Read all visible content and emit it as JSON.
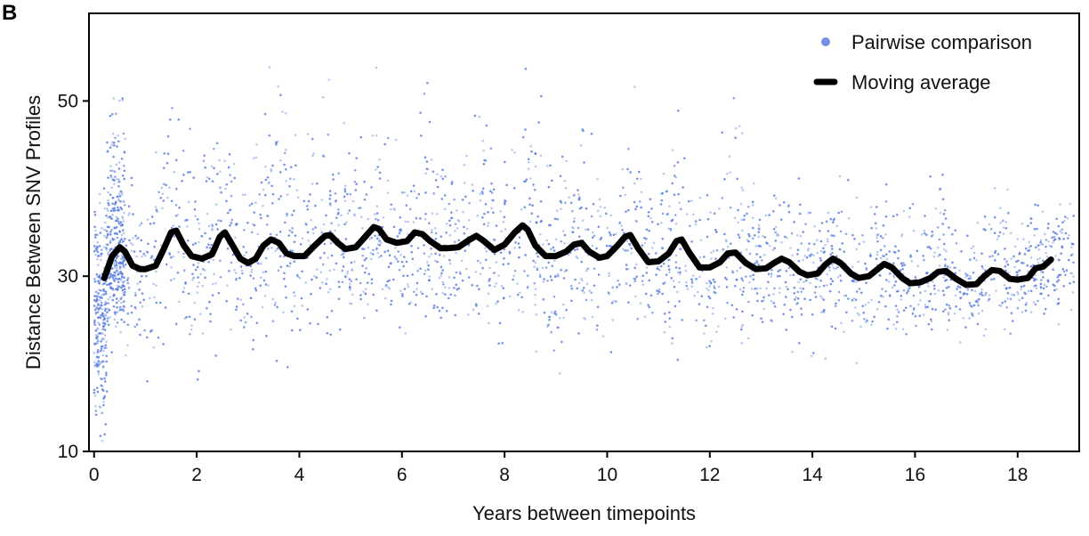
{
  "panel_label": "B",
  "chart_data": {
    "type": "scatter",
    "title": "",
    "xlabel": "Years between timepoints",
    "ylabel": "Distance Between SNV Profiles",
    "xlim": [
      -0.1,
      19.2
    ],
    "ylim": [
      10,
      60
    ],
    "xticks": [
      0,
      2,
      4,
      6,
      8,
      10,
      12,
      14,
      16,
      18
    ],
    "yticks": [
      10,
      30,
      50
    ],
    "grid": false,
    "legend_position": "top-right",
    "colors": {
      "scatter": "#5b7fe3",
      "moving_average": "#000000"
    },
    "series": [
      {
        "name": "Pairwise comparison",
        "kind": "scatter",
        "description_of_distribution": "dense point cloud (tens of thousands of points); within each year cycle the spread is narrowest near integer years (local minima as low as ~16 around years 1–4, ~19–24 later) and widest around half-years (upper tail reaching ~50–58 early, ~40–45 after year 14)",
        "cycle_summary": [
          {
            "year": 0.5,
            "low": 22,
            "high": 52
          },
          {
            "year": 1.0,
            "low": 16,
            "high": 40
          },
          {
            "year": 1.5,
            "low": 22,
            "high": 57
          },
          {
            "year": 2.0,
            "low": 17,
            "high": 45
          },
          {
            "year": 2.5,
            "low": 22,
            "high": 55
          },
          {
            "year": 3.0,
            "low": 17,
            "high": 44
          },
          {
            "year": 3.5,
            "low": 22,
            "high": 58
          },
          {
            "year": 4.0,
            "low": 16,
            "high": 44
          },
          {
            "year": 4.5,
            "low": 22,
            "high": 56
          },
          {
            "year": 5.0,
            "low": 20,
            "high": 45
          },
          {
            "year": 5.5,
            "low": 23,
            "high": 55
          },
          {
            "year": 6.0,
            "low": 20,
            "high": 44
          },
          {
            "year": 6.5,
            "low": 23,
            "high": 58
          },
          {
            "year": 7.0,
            "low": 21,
            "high": 44
          },
          {
            "year": 7.5,
            "low": 23,
            "high": 52
          },
          {
            "year": 8.0,
            "low": 20,
            "high": 44
          },
          {
            "year": 8.5,
            "low": 22,
            "high": 55
          },
          {
            "year": 9.0,
            "low": 18,
            "high": 44
          },
          {
            "year": 9.5,
            "low": 22,
            "high": 52
          },
          {
            "year": 10.0,
            "low": 19,
            "high": 44
          },
          {
            "year": 10.5,
            "low": 22,
            "high": 52
          },
          {
            "year": 11.0,
            "low": 20,
            "high": 43
          },
          {
            "year": 11.5,
            "low": 22,
            "high": 52
          },
          {
            "year": 12.0,
            "low": 19,
            "high": 42
          },
          {
            "year": 12.5,
            "low": 22,
            "high": 56
          },
          {
            "year": 13.0,
            "low": 20,
            "high": 40
          },
          {
            "year": 13.5,
            "low": 22,
            "high": 45
          },
          {
            "year": 14.0,
            "low": 19,
            "high": 40
          },
          {
            "year": 14.5,
            "low": 22,
            "high": 44
          },
          {
            "year": 15.0,
            "low": 20,
            "high": 40
          },
          {
            "year": 15.5,
            "low": 22,
            "high": 42
          },
          {
            "year": 16.0,
            "low": 22,
            "high": 39
          },
          {
            "year": 16.5,
            "low": 23,
            "high": 43
          },
          {
            "year": 17.0,
            "low": 22,
            "high": 39
          },
          {
            "year": 17.5,
            "low": 23,
            "high": 42
          },
          {
            "year": 18.0,
            "low": 22,
            "high": 39
          },
          {
            "year": 18.5,
            "low": 24,
            "high": 40
          }
        ]
      },
      {
        "name": "Moving average",
        "kind": "line",
        "x": [
          0.2,
          0.35,
          0.5,
          0.6,
          0.75,
          0.9,
          1.0,
          1.2,
          1.35,
          1.5,
          1.6,
          1.75,
          1.9,
          2.1,
          2.3,
          2.45,
          2.55,
          2.7,
          2.85,
          3.0,
          3.15,
          3.3,
          3.45,
          3.6,
          3.75,
          3.9,
          4.1,
          4.3,
          4.5,
          4.6,
          4.75,
          4.9,
          5.1,
          5.3,
          5.45,
          5.55,
          5.7,
          5.9,
          6.1,
          6.25,
          6.4,
          6.55,
          6.75,
          6.9,
          7.1,
          7.3,
          7.45,
          7.6,
          7.8,
          8.0,
          8.2,
          8.35,
          8.45,
          8.6,
          8.8,
          9.0,
          9.2,
          9.35,
          9.5,
          9.65,
          9.85,
          10.0,
          10.2,
          10.35,
          10.45,
          10.6,
          10.8,
          11.0,
          11.2,
          11.35,
          11.45,
          11.6,
          11.8,
          12.0,
          12.2,
          12.35,
          12.5,
          12.7,
          12.9,
          13.1,
          13.25,
          13.4,
          13.55,
          13.75,
          13.9,
          14.1,
          14.25,
          14.4,
          14.55,
          14.75,
          14.9,
          15.1,
          15.25,
          15.4,
          15.55,
          15.75,
          15.9,
          16.1,
          16.3,
          16.45,
          16.6,
          16.8,
          17.0,
          17.2,
          17.35,
          17.5,
          17.65,
          17.85,
          18.0,
          18.2,
          18.35,
          18.5,
          18.65
        ],
        "y": [
          29.8,
          32.3,
          33.3,
          32.8,
          31.2,
          30.8,
          30.8,
          31.2,
          33.0,
          35.0,
          35.2,
          33.5,
          32.3,
          32.0,
          32.5,
          34.5,
          35.0,
          33.5,
          32.0,
          31.5,
          32.0,
          33.5,
          34.2,
          33.8,
          32.6,
          32.3,
          32.3,
          33.5,
          34.6,
          34.7,
          33.8,
          33.1,
          33.3,
          34.6,
          35.6,
          35.4,
          34.2,
          33.8,
          34.0,
          35.0,
          34.8,
          34.0,
          33.2,
          33.2,
          33.3,
          34.1,
          34.6,
          34.0,
          33.0,
          33.6,
          35.0,
          35.8,
          35.3,
          33.5,
          32.3,
          32.3,
          32.8,
          33.6,
          33.8,
          32.8,
          32.1,
          32.3,
          33.5,
          34.5,
          34.7,
          33.2,
          31.6,
          31.7,
          32.6,
          34.0,
          34.2,
          32.7,
          31.0,
          31.0,
          31.6,
          32.6,
          32.7,
          31.5,
          30.8,
          30.9,
          31.5,
          32.0,
          31.6,
          30.5,
          30.1,
          30.3,
          31.3,
          32.0,
          31.5,
          30.3,
          29.8,
          30.0,
          30.7,
          31.4,
          31.0,
          29.8,
          29.2,
          29.3,
          29.8,
          30.5,
          30.6,
          29.7,
          29.0,
          29.1,
          30.0,
          30.7,
          30.6,
          29.7,
          29.6,
          29.8,
          30.9,
          31.1,
          31.9
        ]
      }
    ]
  }
}
